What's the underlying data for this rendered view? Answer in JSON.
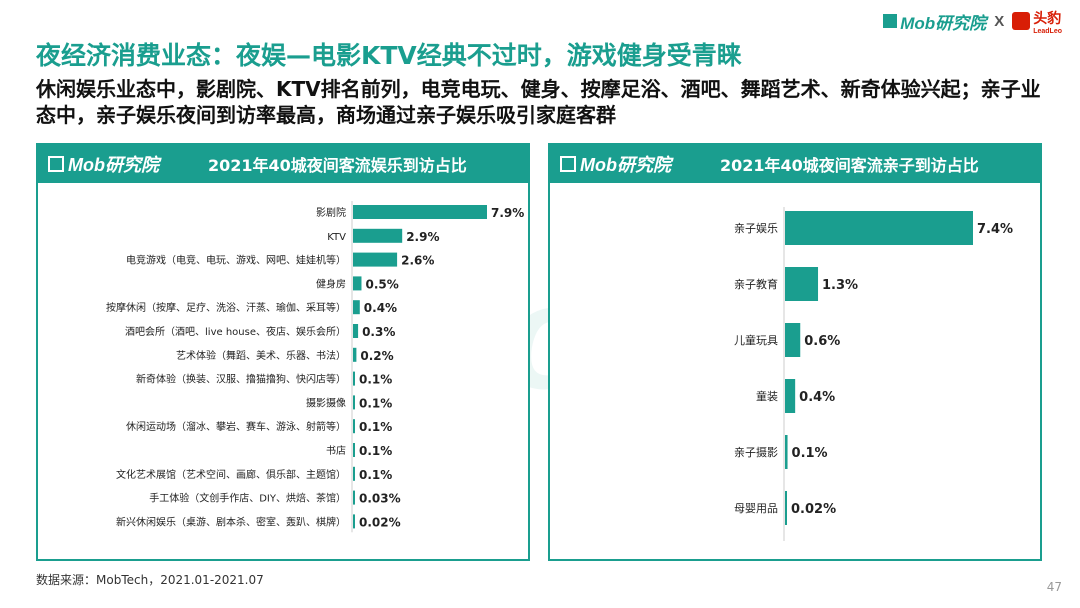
{
  "brand": {
    "mob": "Mob研究院",
    "x": "X",
    "toutiao": "头豹",
    "toutiao_sub": "LeadLeo"
  },
  "title": "夜经济消费业态：夜娱—电影KTV经典不过时，游戏健身受青睐",
  "subtitle": "休闲娱乐业态中，影剧院、KTV排名前列，电竞电玩、健身、按摩足浴、酒吧、舞蹈艺术、新奇体验兴起；亲子业态中，亲子娱乐夜间到访率最高，商场通过亲子娱乐吸引家庭客群",
  "watermark": "MobTech",
  "panel_logo": "Mob研究院",
  "source": "数据来源：MobTech，2021.01-2021.07",
  "page_number": "47",
  "colors": {
    "accent": "#1a9e8f",
    "brand_red": "#d81e06"
  },
  "chart_data": [
    {
      "type": "bar",
      "orientation": "horizontal",
      "title": "2021年40城夜间客流娱乐到访占比",
      "categories": [
        "影剧院",
        "KTV",
        "电竞游戏（电竞、电玩、游戏、网吧、娃娃机等）",
        "健身房",
        "按摩休闲（按摩、足疗、洗浴、汗蒸、瑜伽、采耳等）",
        "酒吧会所（酒吧、live house、夜店、娱乐会所）",
        "艺术体验（舞蹈、美术、乐器、书法）",
        "新奇体验（换装、汉服、撸猫撸狗、快闪店等）",
        "摄影摄像",
        "休闲运动场（溜冰、攀岩、赛车、游泳、射箭等）",
        "书店",
        "文化艺术展馆（艺术空间、画廊、俱乐部、主题馆）",
        "手工体验（文创手作店、DIY、烘焙、茶馆）",
        "新兴休闲娱乐（桌游、剧本杀、密室、轰趴、棋牌）"
      ],
      "values": [
        7.9,
        2.9,
        2.6,
        0.5,
        0.4,
        0.3,
        0.2,
        0.1,
        0.1,
        0.1,
        0.1,
        0.1,
        0.03,
        0.02
      ],
      "labels": [
        "7.9%",
        "2.9%",
        "2.6%",
        "0.5%",
        "0.4%",
        "0.3%",
        "0.2%",
        "0.1%",
        "0.1%",
        "0.1%",
        "0.1%",
        "0.1%",
        "0.03%",
        "0.02%"
      ],
      "unit": "%",
      "xlim": [
        0,
        7.9
      ],
      "grid": false,
      "legend": "none"
    },
    {
      "type": "bar",
      "orientation": "horizontal",
      "title": "2021年40城夜间客流亲子到访占比",
      "categories": [
        "亲子娱乐",
        "亲子教育",
        "儿童玩具",
        "童装",
        "亲子摄影",
        "母婴用品"
      ],
      "values": [
        7.4,
        1.3,
        0.6,
        0.4,
        0.1,
        0.02
      ],
      "labels": [
        "7.4%",
        "1.3%",
        "0.6%",
        "0.4%",
        "0.1%",
        "0.02%"
      ],
      "unit": "%",
      "xlim": [
        0,
        7.4
      ],
      "grid": false,
      "legend": "none"
    }
  ]
}
